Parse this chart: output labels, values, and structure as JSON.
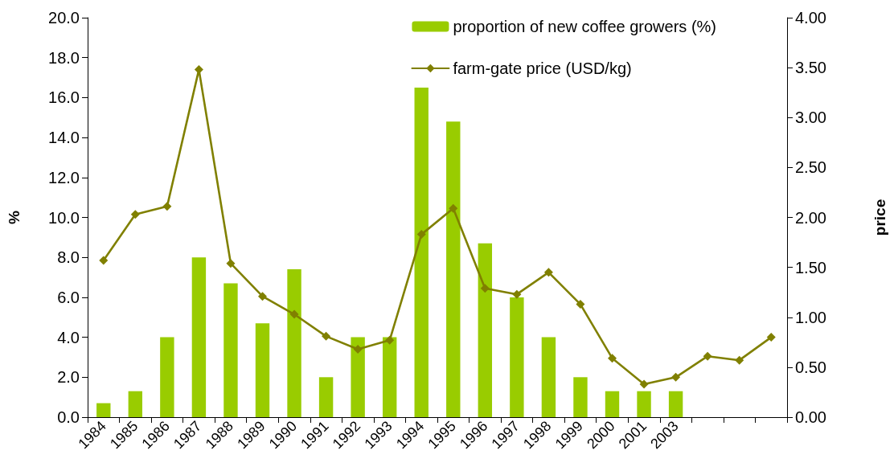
{
  "chart_data": {
    "type": "bar",
    "categories": [
      "1984",
      "1985",
      "1986",
      "1987",
      "1988",
      "1989",
      "1990",
      "1991",
      "1992",
      "1993",
      "1994",
      "1995",
      "1996",
      "1997",
      "1998",
      "1999",
      "2000",
      "2001",
      "2003",
      null,
      null,
      null
    ],
    "series": [
      {
        "name": "proportion of new coffee growers (%)",
        "color": "#99cc00",
        "values": [
          0.7,
          1.3,
          4.0,
          8.0,
          6.7,
          4.7,
          7.4,
          2.0,
          4.0,
          4.0,
          16.5,
          14.8,
          8.7,
          6.0,
          4.0,
          2.0,
          1.3,
          1.3,
          1.3,
          null,
          null,
          null
        ]
      },
      {
        "name": "farm-gate price (USD/kg)",
        "type": "line",
        "axis": "y2",
        "color": "#808000",
        "marker": "diamond",
        "line_style": "solid",
        "values": [
          1.57,
          2.03,
          2.11,
          3.48,
          1.54,
          1.21,
          1.03,
          0.81,
          0.68,
          0.77,
          1.83,
          2.09,
          1.29,
          1.23,
          1.45,
          1.13,
          0.59,
          0.33,
          0.4,
          0.61,
          0.57,
          0.8
        ]
      }
    ],
    "ylabel": "%",
    "y2label": "price",
    "ylim": [
      0,
      20
    ],
    "yticks": [
      {
        "value": 0,
        "label": "0.0"
      },
      {
        "value": 2,
        "label": "2.0"
      },
      {
        "value": 4,
        "label": "4.0"
      },
      {
        "value": 6,
        "label": "6.0"
      },
      {
        "value": 8,
        "label": "8.0"
      },
      {
        "value": 10,
        "label": "10.0"
      },
      {
        "value": 12,
        "label": "12.0"
      },
      {
        "value": 14,
        "label": "14.0"
      },
      {
        "value": 16,
        "label": "16.0"
      },
      {
        "value": 18,
        "label": "18.0"
      },
      {
        "value": 20,
        "label": "20.0"
      }
    ],
    "y2lim": [
      0,
      4
    ],
    "y2ticks": [
      {
        "value": 0,
        "label": "0.00"
      },
      {
        "value": 0.5,
        "label": "0.50"
      },
      {
        "value": 1,
        "label": "1.00"
      },
      {
        "value": 1.5,
        "label": "1.50"
      },
      {
        "value": 2,
        "label": "2.00"
      },
      {
        "value": 2.5,
        "label": "2.50"
      },
      {
        "value": 3,
        "label": "3.00"
      },
      {
        "value": 3.5,
        "label": "3.50"
      },
      {
        "value": 4,
        "label": "4.00"
      }
    ],
    "legend": "top right"
  }
}
